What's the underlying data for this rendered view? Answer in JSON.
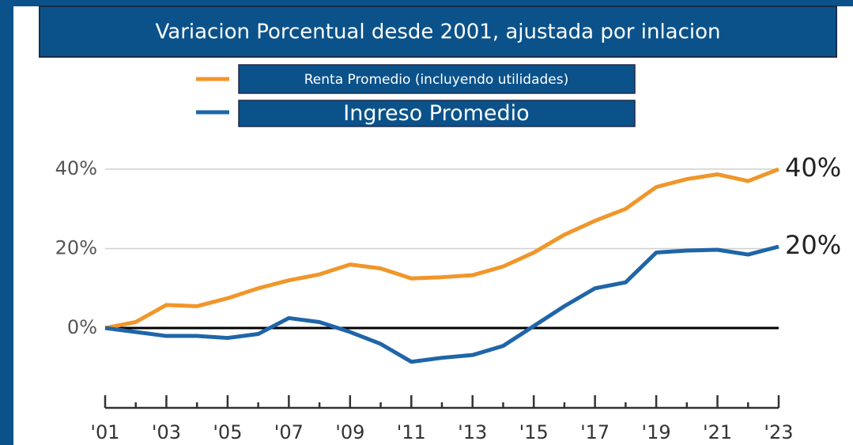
{
  "chart_data": {
    "type": "line",
    "title": "Variacion Porcentual desde 2001, ajustada por inlacion",
    "categories": [
      "'01",
      null,
      "'03",
      null,
      "'05",
      null,
      "'07",
      null,
      "'09",
      null,
      "'11",
      null,
      "'13",
      null,
      "'15",
      null,
      "'17",
      null,
      "'19",
      null,
      "'21",
      null,
      "'23"
    ],
    "series": [
      {
        "name": "Renta Promedio (incluyendo utilidades)",
        "color": "#f0962a",
        "values": [
          0,
          1.5,
          5.8,
          5.5,
          7.5,
          10,
          12,
          13.5,
          16,
          15,
          12.5,
          12.8,
          13.3,
          15.5,
          19,
          23.5,
          27,
          30,
          35.5,
          37.5,
          38.7,
          37,
          40
        ],
        "end_label": "40%"
      },
      {
        "name": "Ingreso Promedio",
        "color": "#1f65a8",
        "values": [
          0,
          -1,
          -2,
          -2,
          -2.5,
          -1.5,
          2.5,
          1.5,
          -1,
          -4,
          -8.5,
          -7.5,
          -6.8,
          -4.5,
          0.5,
          5.5,
          10,
          11.5,
          19,
          19.5,
          19.7,
          18.5,
          20.5
        ],
        "end_label": "20%"
      }
    ],
    "ylim": [
      -10,
      45
    ],
    "yticks": [
      {
        "value": 0,
        "label": "0%"
      },
      {
        "value": 20,
        "label": "20%"
      },
      {
        "value": 40,
        "label": "40%"
      }
    ],
    "grid": true
  }
}
